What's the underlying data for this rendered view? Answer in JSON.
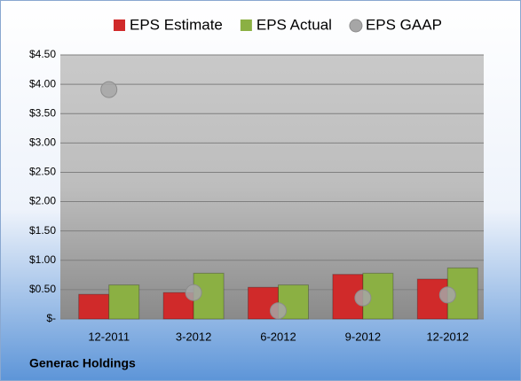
{
  "chart_data": {
    "type": "bar",
    "subtitle": "Generac Holdings",
    "categories": [
      "12-2011",
      "3-2012",
      "6-2012",
      "9-2012",
      "12-2012"
    ],
    "series": [
      {
        "name": "EPS Estimate",
        "color": "#d02a2a",
        "values": [
          0.42,
          0.45,
          0.54,
          0.76,
          0.68
        ]
      },
      {
        "name": "EPS Actual",
        "color": "#8bb043",
        "values": [
          0.58,
          0.78,
          0.58,
          0.78,
          0.87
        ]
      },
      {
        "name": "EPS GAAP",
        "color": "#a6a6a6",
        "type": "scatter",
        "values": [
          3.91,
          0.45,
          0.14,
          0.36,
          0.41
        ]
      }
    ],
    "ylim": [
      0,
      4.5
    ],
    "yticks": [
      {
        "value": 0,
        "label": "$-"
      },
      {
        "value": 0.5,
        "label": "$0.50"
      },
      {
        "value": 1,
        "label": "$1.00"
      },
      {
        "value": 1.5,
        "label": "$1.50"
      },
      {
        "value": 2,
        "label": "$2.00"
      },
      {
        "value": 2.5,
        "label": "$2.50"
      },
      {
        "value": 3,
        "label": "$3.00"
      },
      {
        "value": 3.5,
        "label": "$3.50"
      },
      {
        "value": 4,
        "label": "$4.00"
      },
      {
        "value": 4.5,
        "label": "$4.50"
      }
    ],
    "grid": true
  }
}
